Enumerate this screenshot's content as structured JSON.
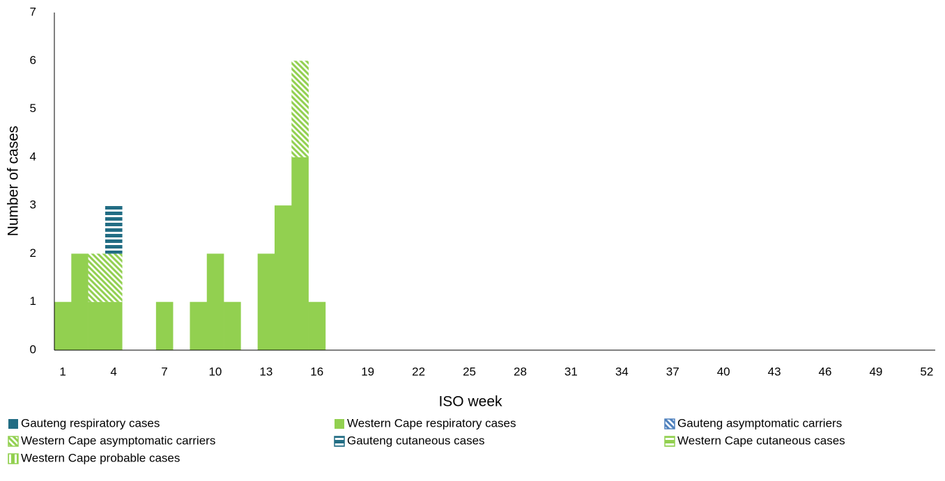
{
  "chart_data": {
    "type": "stacked_bar",
    "x_label": "ISO week",
    "y_label": "Number of cases",
    "categories": [
      1,
      null,
      null,
      4,
      null,
      null,
      7,
      null,
      null,
      10,
      null,
      null,
      13,
      null,
      null,
      16,
      null,
      null,
      19,
      null,
      null,
      22,
      null,
      null,
      25,
      null,
      null,
      28,
      null,
      null,
      31,
      null,
      null,
      34,
      null,
      null,
      37,
      null,
      null,
      40,
      null,
      null,
      43,
      null,
      null,
      46,
      null,
      null,
      49,
      null,
      null,
      52
    ],
    "ylim": [
      0,
      7
    ],
    "yticks": [
      0,
      1,
      2,
      3,
      4,
      5,
      6,
      7
    ],
    "series": [
      {
        "name": "Gauteng respiratory cases",
        "color": "#226d84",
        "pattern": "solid",
        "values": [
          0,
          0,
          0,
          0,
          0,
          0,
          0,
          0,
          0,
          0,
          0,
          0,
          0,
          0,
          0,
          0,
          0,
          0,
          0,
          0,
          0,
          0,
          0,
          0,
          0,
          0,
          0,
          0,
          0,
          0,
          0,
          0,
          0,
          0,
          0,
          0,
          0,
          0,
          0,
          0,
          0,
          0,
          0,
          0,
          0,
          0,
          0,
          0,
          0,
          0,
          0,
          0
        ]
      },
      {
        "name": "Western Cape respiratory cases",
        "color": "#92d050",
        "pattern": "solid",
        "values": [
          1,
          2,
          1,
          1,
          0,
          0,
          1,
          0,
          1,
          2,
          1,
          0,
          2,
          3,
          4,
          1,
          0,
          0,
          0,
          0,
          0,
          0,
          0,
          0,
          0,
          0,
          0,
          0,
          0,
          0,
          0,
          0,
          0,
          0,
          0,
          0,
          0,
          0,
          0,
          0,
          0,
          0,
          0,
          0,
          0,
          0,
          0,
          0,
          0,
          0,
          0,
          0
        ]
      },
      {
        "name": "Gauteng asymptomatic carriers",
        "color": "#4f81bd",
        "pattern": "diagonal",
        "values": [
          0,
          0,
          0,
          0,
          0,
          0,
          0,
          0,
          0,
          0,
          0,
          0,
          0,
          0,
          0,
          0,
          0,
          0,
          0,
          0,
          0,
          0,
          0,
          0,
          0,
          0,
          0,
          0,
          0,
          0,
          0,
          0,
          0,
          0,
          0,
          0,
          0,
          0,
          0,
          0,
          0,
          0,
          0,
          0,
          0,
          0,
          0,
          0,
          0,
          0,
          0,
          0
        ]
      },
      {
        "name": "Western Cape asymptomatic carriers",
        "color": "#92d050",
        "pattern": "diagonal",
        "values": [
          0,
          0,
          1,
          1,
          0,
          0,
          0,
          0,
          0,
          0,
          0,
          0,
          0,
          0,
          2,
          0,
          0,
          0,
          0,
          0,
          0,
          0,
          0,
          0,
          0,
          0,
          0,
          0,
          0,
          0,
          0,
          0,
          0,
          0,
          0,
          0,
          0,
          0,
          0,
          0,
          0,
          0,
          0,
          0,
          0,
          0,
          0,
          0,
          0,
          0,
          0,
          0
        ]
      },
      {
        "name": "Gauteng cutaneous cases",
        "color": "#226d84",
        "pattern": "horizontal",
        "values": [
          0,
          0,
          0,
          1,
          0,
          0,
          0,
          0,
          0,
          0,
          0,
          0,
          0,
          0,
          0,
          0,
          0,
          0,
          0,
          0,
          0,
          0,
          0,
          0,
          0,
          0,
          0,
          0,
          0,
          0,
          0,
          0,
          0,
          0,
          0,
          0,
          0,
          0,
          0,
          0,
          0,
          0,
          0,
          0,
          0,
          0,
          0,
          0,
          0,
          0,
          0,
          0
        ]
      },
      {
        "name": "Western Cape cutaneous cases",
        "color": "#92d050",
        "pattern": "horizontal",
        "values": [
          0,
          0,
          0,
          0,
          0,
          0,
          0,
          0,
          0,
          0,
          0,
          0,
          0,
          0,
          0,
          0,
          0,
          0,
          0,
          0,
          0,
          0,
          0,
          0,
          0,
          0,
          0,
          0,
          0,
          0,
          0,
          0,
          0,
          0,
          0,
          0,
          0,
          0,
          0,
          0,
          0,
          0,
          0,
          0,
          0,
          0,
          0,
          0,
          0,
          0,
          0,
          0
        ]
      },
      {
        "name": "Western Cape probable cases",
        "color": "#92d050",
        "pattern": "vertical",
        "values": [
          0,
          0,
          0,
          0,
          0,
          0,
          0,
          0,
          0,
          0,
          0,
          0,
          0,
          0,
          0,
          0,
          0,
          0,
          0,
          0,
          0,
          0,
          0,
          0,
          0,
          0,
          0,
          0,
          0,
          0,
          0,
          0,
          0,
          0,
          0,
          0,
          0,
          0,
          0,
          0,
          0,
          0,
          0,
          0,
          0,
          0,
          0,
          0,
          0,
          0,
          0,
          0
        ]
      }
    ]
  }
}
